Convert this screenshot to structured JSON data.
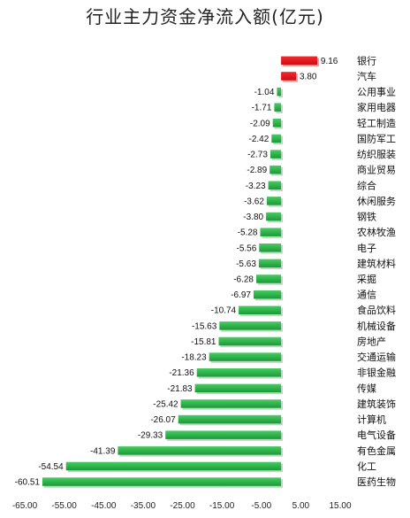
{
  "chart_data": {
    "type": "bar",
    "orientation": "horizontal",
    "title": "行业主力资金净流入额(亿元)",
    "categories": [
      "银行",
      "汽车",
      "公用事业",
      "家用电器",
      "轻工制造",
      "国防军工",
      "纺织服装",
      "商业贸易",
      "综合",
      "休闲服务",
      "钢铁",
      "农林牧渔",
      "电子",
      "建筑材料",
      "采掘",
      "通信",
      "食品饮料",
      "机械设备",
      "房地产",
      "交通运输",
      "非银金融",
      "传媒",
      "建筑装饰",
      "计算机",
      "电气设备",
      "有色金属",
      "化工",
      "医药生物"
    ],
    "values": [
      9.16,
      3.8,
      -1.04,
      -1.71,
      -2.09,
      -2.42,
      -2.73,
      -2.89,
      -3.23,
      -3.62,
      -3.8,
      -5.28,
      -5.56,
      -5.63,
      -6.28,
      -6.97,
      -10.74,
      -15.63,
      -15.81,
      -18.23,
      -21.36,
      -21.83,
      -25.42,
      -26.07,
      -29.33,
      -41.39,
      -54.54,
      -60.51
    ],
    "value_labels": [
      "9.16",
      "3.80",
      "-1.04",
      "-1.71",
      "-2.09",
      "-2.42",
      "-2.73",
      "-2.89",
      "-3.23",
      "-3.62",
      "-3.80",
      "-5.28",
      "-5.56",
      "-5.63",
      "-6.28",
      "-6.97",
      "-10.74",
      "-15.63",
      "-15.81",
      "-18.23",
      "-21.36",
      "-21.83",
      "-25.42",
      "-26.07",
      "-29.33",
      "-41.39",
      "-54.54",
      "-60.51"
    ],
    "xlim": [
      -65,
      15
    ],
    "x_ticks": [
      -65,
      -55,
      -45,
      -35,
      -25,
      -15,
      -5,
      5,
      15
    ],
    "x_tick_labels": [
      "-65.00",
      "-55.00",
      "-45.00",
      "-35.00",
      "-25.00",
      "-15.00",
      "-5.00",
      "5.00",
      "15.00"
    ],
    "grid": false,
    "legend": "none",
    "colors": {
      "positive": "#e8131a",
      "negative": "#1ea43c",
      "negative_light": "#3fc35c"
    }
  }
}
